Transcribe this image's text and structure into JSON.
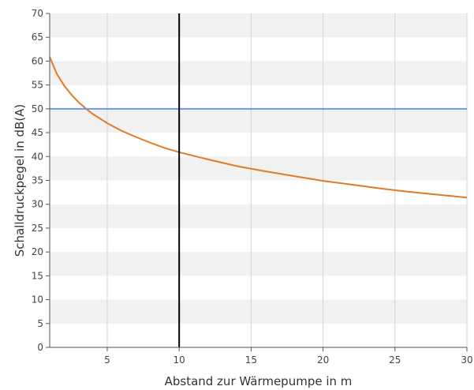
{
  "chart_data": {
    "type": "line",
    "xlabel": "Abstand zur Wärmepumpe in m",
    "ylabel": "Schalldruckpegel in dB(A)",
    "xlim": [
      1,
      30
    ],
    "ylim": [
      0,
      70
    ],
    "xticks": [
      5,
      10,
      15,
      20,
      25,
      30
    ],
    "yticks": [
      0,
      5,
      10,
      15,
      20,
      25,
      30,
      35,
      40,
      45,
      50,
      55,
      60,
      65,
      70
    ],
    "grid": true,
    "legend": "none",
    "series": [
      {
        "color": "#e07b28",
        "x": [
          1,
          1.5,
          2,
          2.5,
          3,
          3.5,
          4,
          5,
          6,
          7,
          8,
          9,
          10,
          12,
          14,
          16,
          18,
          20,
          22,
          24,
          26,
          28,
          30
        ],
        "values": [
          60.9,
          57.3,
          54.9,
          53.0,
          51.4,
          50.1,
          48.9,
          47.0,
          45.4,
          44.1,
          42.9,
          41.8,
          40.9,
          39.4,
          38.0,
          36.9,
          35.9,
          34.9,
          34.1,
          33.3,
          32.6,
          32.0,
          31.4
        ]
      }
    ],
    "reference_lines": [
      {
        "orientation": "horizontal",
        "value": 50,
        "color": "#6f93f0"
      },
      {
        "orientation": "vertical",
        "value": 10,
        "color": "#000000"
      }
    ],
    "colors": {
      "band": "#f1f1f1",
      "grid": "#d3d3d3",
      "axis": "#555555"
    }
  }
}
